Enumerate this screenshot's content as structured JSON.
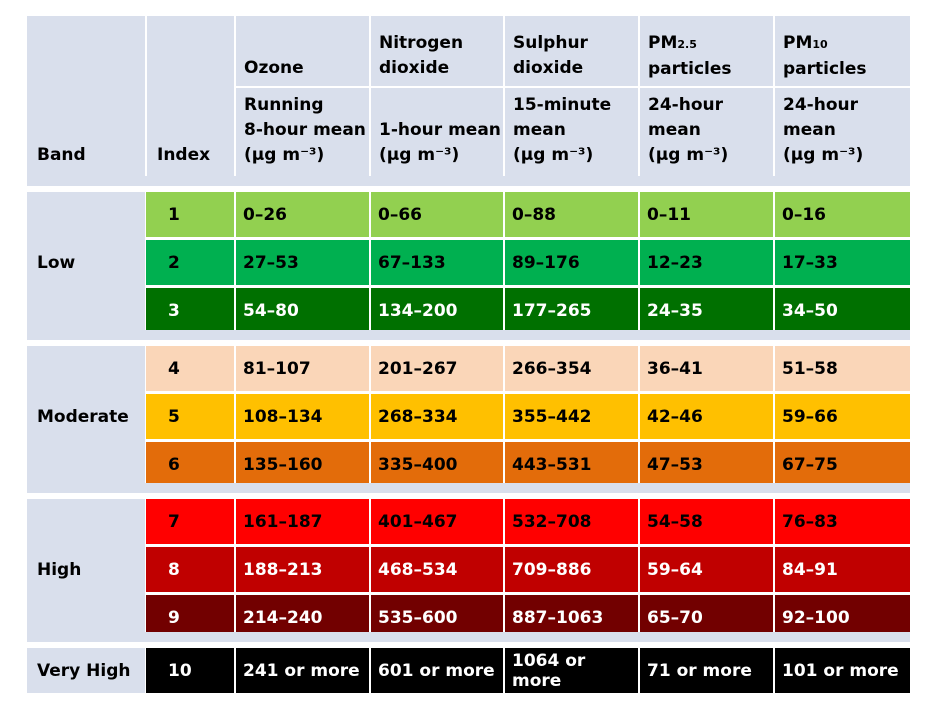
{
  "headers": {
    "band": "Band",
    "index": "Index",
    "pollutants": [
      {
        "name": "Ozone",
        "measure": "Running\n8-hour mean\n(µg m⁻³)"
      },
      {
        "name": "Nitrogen\ndioxide",
        "measure": "1-hour mean\n(µg m⁻³)"
      },
      {
        "name": "Sulphur\ndioxide",
        "measure": "15-minute\nmean\n(µg m⁻³)"
      },
      {
        "name": "PM2.5\nparticles",
        "measure": "24-hour\nmean\n(µg m⁻³)"
      },
      {
        "name": "PM10\nparticles",
        "measure": "24-hour\nmean\n(µg m⁻³)"
      }
    ]
  },
  "bands": [
    {
      "label": "Low",
      "rows": [
        {
          "index": "1",
          "bg": "#92d050",
          "fg": "#000000",
          "values": [
            "0–26",
            "0–66",
            "0–88",
            "0–11",
            "0–16"
          ]
        },
        {
          "index": "2",
          "bg": "#00b050",
          "fg": "#000000",
          "values": [
            "27–53",
            "67–133",
            "89–176",
            "12–23",
            "17–33"
          ]
        },
        {
          "index": "3",
          "bg": "#007000",
          "fg": "#ffffff",
          "values": [
            "54–80",
            "134–200",
            "177–265",
            "24–35",
            "34–50"
          ]
        }
      ]
    },
    {
      "label": "Moderate",
      "rows": [
        {
          "index": "4",
          "bg": "#fad6b8",
          "fg": "#000000",
          "values": [
            "81–107",
            "201–267",
            "266–354",
            "36–41",
            "51–58"
          ]
        },
        {
          "index": "5",
          "bg": "#ffc000",
          "fg": "#000000",
          "values": [
            "108–134",
            "268–334",
            "355–442",
            "42–46",
            "59–66"
          ]
        },
        {
          "index": "6",
          "bg": "#e36c0a",
          "fg": "#000000",
          "values": [
            "135–160",
            "335–400",
            "443–531",
            "47–53",
            "67–75"
          ]
        }
      ]
    },
    {
      "label": "High",
      "rows": [
        {
          "index": "7",
          "bg": "#ff0000",
          "fg": "#000000",
          "values": [
            "161–187",
            "401–467",
            "532–708",
            "54–58",
            "76–83"
          ]
        },
        {
          "index": "8",
          "bg": "#c00000",
          "fg": "#ffffff",
          "values": [
            "188–213",
            "468–534",
            "709–886",
            "59–64",
            "84–91"
          ]
        },
        {
          "index": "9",
          "bg": "#720000",
          "fg": "#ffffff",
          "values": [
            "214–240",
            "535–600",
            "887–1063",
            "65–70",
            "92–100"
          ]
        }
      ]
    },
    {
      "label": "Very High",
      "rows": [
        {
          "index": "10",
          "bg": "#000000",
          "fg": "#ffffff",
          "values": [
            "241 or more",
            "601 or more",
            "1064 or more",
            "71 or more",
            "101 or more"
          ]
        }
      ]
    }
  ]
}
